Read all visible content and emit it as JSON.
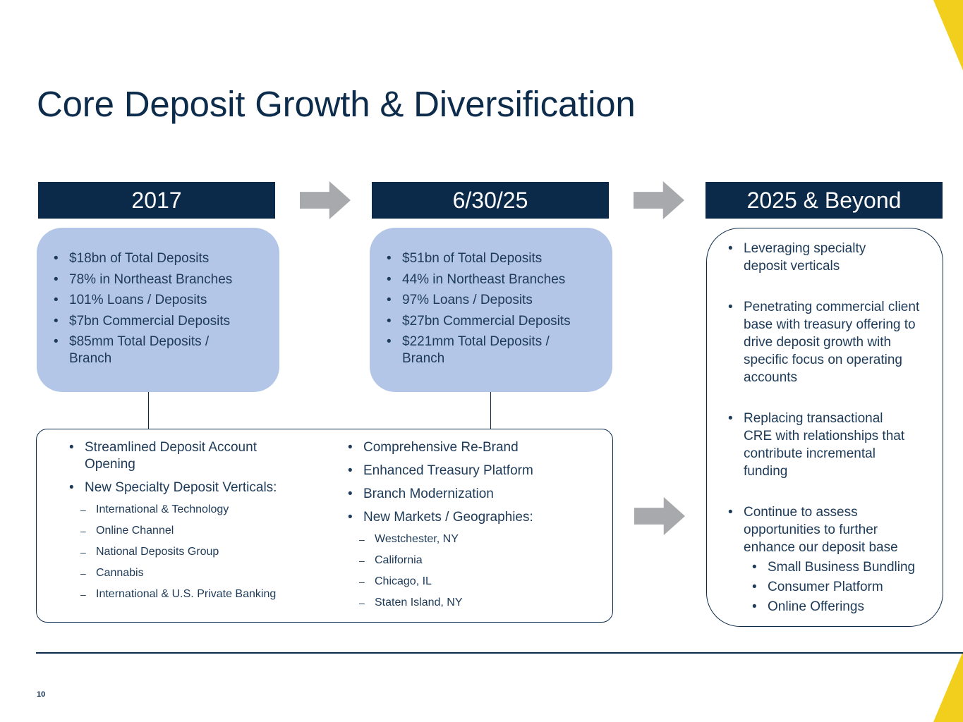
{
  "title": "Core Deposit Growth & Diversification",
  "page_number": "10",
  "accent_color": "#f2cf1d",
  "navy_color": "#0b2a4a",
  "panel_color": "#b3c6e7",
  "columns": [
    {
      "header": "2017",
      "bullets": [
        "$18bn of Total Deposits",
        "78% in Northeast Branches",
        "101% Loans / Deposits",
        "$7bn Commercial Deposits",
        "$85mm Total Deposits / Branch"
      ]
    },
    {
      "header": "6/30/25",
      "bullets": [
        "$51bn of Total Deposits",
        "44% in Northeast Branches",
        "97% Loans / Deposits",
        "$27bn Commercial Deposits",
        "$221mm Total Deposits / Branch"
      ]
    },
    {
      "header": "2025 & Beyond",
      "bullets": [
        "Leveraging specialty deposit verticals",
        "Penetrating commercial client base with treasury offering to drive deposit growth with specific focus on operating accounts",
        "Replacing transactional CRE with relationships that contribute incremental funding",
        "Continue to assess opportunities to further enhance our deposit base"
      ],
      "sub_bullets": [
        "Small Business Bundling",
        "Consumer Platform",
        "Online Offerings"
      ]
    }
  ],
  "initiatives": {
    "left": {
      "bullets": [
        "Streamlined Deposit Account Opening",
        "New Specialty Deposit Verticals:"
      ],
      "sub": [
        "International & Technology",
        "Online Channel",
        "National Deposits Group",
        "Cannabis",
        "International & U.S. Private Banking"
      ]
    },
    "right": {
      "bullets": [
        "Comprehensive Re-Brand",
        "Enhanced Treasury Platform",
        "Branch Modernization",
        "New Markets / Geographies:"
      ],
      "sub": [
        "Westchester, NY",
        "California",
        "Chicago, IL",
        "Staten Island, NY"
      ]
    }
  },
  "icons": {
    "arrow": "right-arrow-icon"
  }
}
